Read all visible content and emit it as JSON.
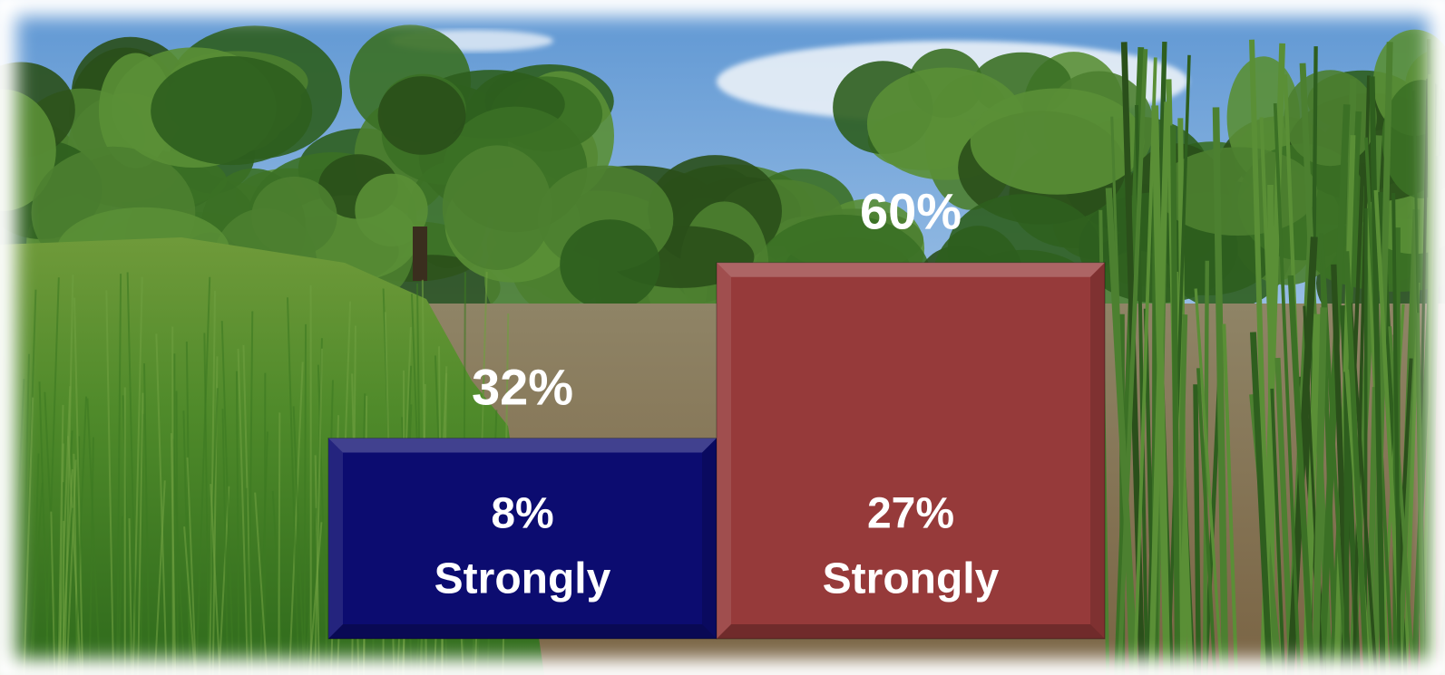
{
  "chart_data": {
    "type": "bar",
    "categories": [
      null,
      null
    ],
    "values": [
      32,
      60
    ],
    "value_labels": [
      "32%",
      "60%"
    ],
    "colors": [
      "#0c0c70",
      "#963a3a"
    ],
    "strongly_values": [
      8,
      27
    ],
    "strongly_value_labels": [
      "8%",
      "27%"
    ],
    "strongly_texts": [
      "Strongly",
      "Strongly"
    ]
  }
}
